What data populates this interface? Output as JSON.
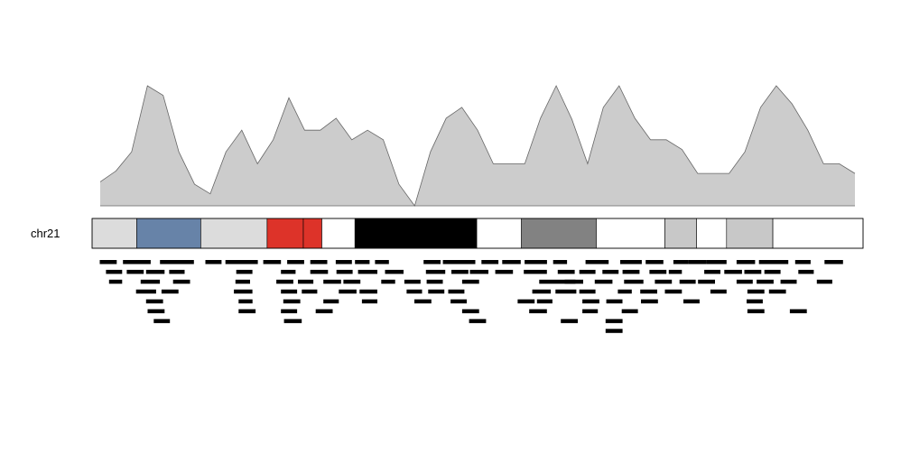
{
  "chromosome": {
    "name": "chr21",
    "label": "chr21"
  },
  "chart_data": {
    "type": "area",
    "coverage": {
      "values": [
        0.2,
        0.29,
        0.45,
        1.0,
        0.92,
        0.45,
        0.18,
        0.1,
        0.45,
        0.63,
        0.35,
        0.55,
        0.9,
        0.63,
        0.63,
        0.73,
        0.55,
        0.63,
        0.55,
        0.18,
        0.0,
        0.45,
        0.73,
        0.82,
        0.63,
        0.35,
        0.35,
        0.35,
        0.73,
        1.0,
        0.72,
        0.35,
        0.82,
        1.0,
        0.73,
        0.55,
        0.55,
        0.47,
        0.27,
        0.27,
        0.27,
        0.45,
        0.82,
        1.0,
        0.85,
        0.63,
        0.35,
        0.35,
        0.27
      ],
      "fill": "#cccccc",
      "stroke": "#666666"
    },
    "ideogram": {
      "bands": [
        {
          "start": 0.0,
          "end": 0.058,
          "color": "#dcdcdc"
        },
        {
          "start": 0.058,
          "end": 0.141,
          "color": "#6783a8"
        },
        {
          "start": 0.141,
          "end": 0.227,
          "color": "#dcdcdc"
        },
        {
          "start": 0.227,
          "end": 0.274,
          "color": "#dd3329"
        },
        {
          "start": 0.274,
          "end": 0.298,
          "color": "#dd3329"
        },
        {
          "start": 0.298,
          "end": 0.341,
          "color": "#ffffff"
        },
        {
          "start": 0.341,
          "end": 0.499,
          "color": "#000000"
        },
        {
          "start": 0.499,
          "end": 0.557,
          "color": "#ffffff"
        },
        {
          "start": 0.557,
          "end": 0.654,
          "color": "#828282"
        },
        {
          "start": 0.654,
          "end": 0.743,
          "color": "#ffffff"
        },
        {
          "start": 0.743,
          "end": 0.784,
          "color": "#c8c8c8"
        },
        {
          "start": 0.784,
          "end": 0.823,
          "color": "#ffffff"
        },
        {
          "start": 0.823,
          "end": 0.883,
          "color": "#c8c8c8"
        },
        {
          "start": 0.883,
          "end": 1.0,
          "color": "#ffffff"
        }
      ],
      "border": "#000000"
    },
    "features": {
      "color": "#000000",
      "rows": [
        [
          [
            0.01,
            0.032
          ],
          [
            0.04,
            0.076
          ],
          [
            0.088,
            0.132
          ],
          [
            0.147,
            0.168
          ],
          [
            0.173,
            0.215
          ],
          [
            0.222,
            0.245
          ],
          [
            0.253,
            0.275
          ],
          [
            0.283,
            0.305
          ],
          [
            0.316,
            0.337
          ],
          [
            0.341,
            0.36
          ],
          [
            0.367,
            0.385
          ],
          [
            0.43,
            0.452
          ],
          [
            0.455,
            0.497
          ],
          [
            0.505,
            0.527
          ],
          [
            0.532,
            0.556
          ],
          [
            0.561,
            0.59
          ],
          [
            0.598,
            0.616
          ],
          [
            0.64,
            0.67
          ],
          [
            0.685,
            0.713
          ],
          [
            0.718,
            0.741
          ],
          [
            0.754,
            0.773
          ],
          [
            0.773,
            0.797
          ],
          [
            0.797,
            0.823
          ],
          [
            0.836,
            0.86
          ],
          [
            0.865,
            0.903
          ],
          [
            0.912,
            0.932
          ],
          [
            0.95,
            0.974
          ]
        ],
        [
          [
            0.018,
            0.039
          ],
          [
            0.045,
            0.067
          ],
          [
            0.07,
            0.094
          ],
          [
            0.1,
            0.12
          ],
          [
            0.187,
            0.208
          ],
          [
            0.245,
            0.264
          ],
          [
            0.283,
            0.306
          ],
          [
            0.317,
            0.338
          ],
          [
            0.345,
            0.37
          ],
          [
            0.38,
            0.404
          ],
          [
            0.433,
            0.458
          ],
          [
            0.466,
            0.488
          ],
          [
            0.49,
            0.514
          ],
          [
            0.523,
            0.546
          ],
          [
            0.56,
            0.59
          ],
          [
            0.604,
            0.626
          ],
          [
            0.632,
            0.653
          ],
          [
            0.662,
            0.683
          ],
          [
            0.688,
            0.71
          ],
          [
            0.723,
            0.745
          ],
          [
            0.748,
            0.765
          ],
          [
            0.794,
            0.815
          ],
          [
            0.82,
            0.843
          ],
          [
            0.846,
            0.868
          ],
          [
            0.872,
            0.893
          ],
          [
            0.916,
            0.936
          ]
        ],
        [
          [
            0.022,
            0.039
          ],
          [
            0.063,
            0.088
          ],
          [
            0.105,
            0.127
          ],
          [
            0.186,
            0.205
          ],
          [
            0.239,
            0.261
          ],
          [
            0.267,
            0.287
          ],
          [
            0.3,
            0.323
          ],
          [
            0.326,
            0.348
          ],
          [
            0.375,
            0.393
          ],
          [
            0.405,
            0.426
          ],
          [
            0.434,
            0.455
          ],
          [
            0.48,
            0.502
          ],
          [
            0.58,
            0.627
          ],
          [
            0.613,
            0.637
          ],
          [
            0.652,
            0.675
          ],
          [
            0.69,
            0.715
          ],
          [
            0.73,
            0.752
          ],
          [
            0.762,
            0.783
          ],
          [
            0.786,
            0.808
          ],
          [
            0.836,
            0.857
          ],
          [
            0.862,
            0.884
          ],
          [
            0.893,
            0.914
          ],
          [
            0.94,
            0.96
          ]
        ],
        [
          [
            0.057,
            0.083
          ],
          [
            0.09,
            0.112
          ],
          [
            0.184,
            0.208
          ],
          [
            0.245,
            0.266
          ],
          [
            0.272,
            0.292
          ],
          [
            0.32,
            0.343
          ],
          [
            0.347,
            0.37
          ],
          [
            0.408,
            0.428
          ],
          [
            0.436,
            0.457
          ],
          [
            0.462,
            0.483
          ],
          [
            0.571,
            0.595
          ],
          [
            0.601,
            0.628
          ],
          [
            0.632,
            0.653
          ],
          [
            0.682,
            0.7
          ],
          [
            0.711,
            0.733
          ],
          [
            0.743,
            0.765
          ],
          [
            0.802,
            0.823
          ],
          [
            0.85,
            0.872
          ],
          [
            0.878,
            0.9
          ]
        ],
        [
          [
            0.07,
            0.092
          ],
          [
            0.19,
            0.208
          ],
          [
            0.248,
            0.27
          ],
          [
            0.3,
            0.32
          ],
          [
            0.35,
            0.37
          ],
          [
            0.418,
            0.44
          ],
          [
            0.465,
            0.486
          ],
          [
            0.552,
            0.574
          ],
          [
            0.577,
            0.597
          ],
          [
            0.636,
            0.658
          ],
          [
            0.667,
            0.688
          ],
          [
            0.712,
            0.734
          ],
          [
            0.767,
            0.788
          ],
          [
            0.849,
            0.87
          ]
        ],
        [
          [
            0.072,
            0.094
          ],
          [
            0.19,
            0.212
          ],
          [
            0.245,
            0.266
          ],
          [
            0.29,
            0.312
          ],
          [
            0.48,
            0.502
          ],
          [
            0.567,
            0.59
          ],
          [
            0.636,
            0.656
          ],
          [
            0.687,
            0.708
          ],
          [
            0.85,
            0.872
          ],
          [
            0.905,
            0.927
          ]
        ],
        [
          [
            0.08,
            0.101
          ],
          [
            0.249,
            0.272
          ],
          [
            0.489,
            0.511
          ],
          [
            0.608,
            0.63
          ],
          [
            0.666,
            0.688
          ]
        ],
        [
          [
            0.666,
            0.688
          ]
        ]
      ]
    }
  }
}
